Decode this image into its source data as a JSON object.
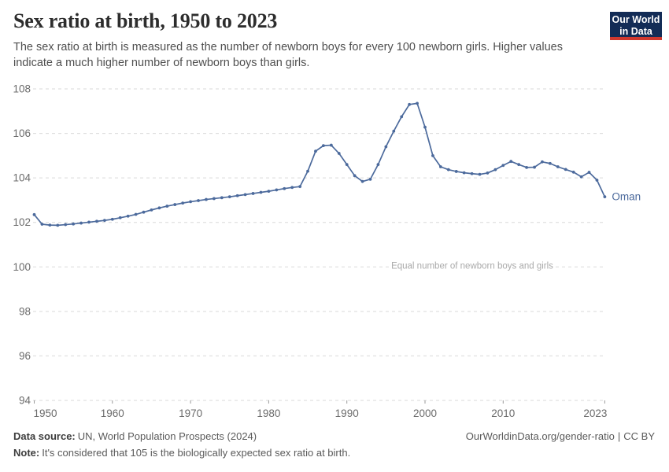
{
  "header": {
    "title": "Sex ratio at birth, 1950 to 2023",
    "subtitle": "The sex ratio at birth is measured as the number of newborn boys for every 100 newborn girls. Higher values indicate a much higher number of newborn boys than girls.",
    "logo": {
      "line1": "Our World",
      "line2": "in Data"
    }
  },
  "chart_data": {
    "type": "line",
    "title": "Sex ratio at birth, 1950 to 2023",
    "xlabel": "",
    "ylabel": "",
    "ylim": [
      94,
      108
    ],
    "yticks": [
      94,
      96,
      98,
      100,
      102,
      104,
      106,
      108
    ],
    "xticks": [
      1950,
      1960,
      1970,
      1980,
      1990,
      2000,
      2010,
      2023
    ],
    "grid": true,
    "legend_position": "end-of-line-label",
    "reference_line": {
      "value": 100,
      "label": "Equal number of newborn boys and girls"
    },
    "x": [
      1950,
      1951,
      1952,
      1953,
      1954,
      1955,
      1956,
      1957,
      1958,
      1959,
      1960,
      1961,
      1962,
      1963,
      1964,
      1965,
      1966,
      1967,
      1968,
      1969,
      1970,
      1971,
      1972,
      1973,
      1974,
      1975,
      1976,
      1977,
      1978,
      1979,
      1980,
      1981,
      1982,
      1983,
      1984,
      1985,
      1986,
      1987,
      1988,
      1989,
      1990,
      1991,
      1992,
      1993,
      1994,
      1995,
      1996,
      1997,
      1998,
      1999,
      2000,
      2001,
      2002,
      2003,
      2004,
      2005,
      2006,
      2007,
      2008,
      2009,
      2010,
      2011,
      2012,
      2013,
      2014,
      2015,
      2016,
      2017,
      2018,
      2019,
      2020,
      2021,
      2022,
      2023
    ],
    "series": [
      {
        "name": "Oman",
        "color": "#4c6a9c",
        "values": [
          102.35,
          101.92,
          101.88,
          101.87,
          101.9,
          101.93,
          101.97,
          102.01,
          102.05,
          102.09,
          102.14,
          102.21,
          102.28,
          102.36,
          102.46,
          102.56,
          102.65,
          102.73,
          102.8,
          102.87,
          102.93,
          102.98,
          103.03,
          103.07,
          103.11,
          103.15,
          103.2,
          103.25,
          103.3,
          103.35,
          103.4,
          103.46,
          103.52,
          103.57,
          103.61,
          104.3,
          105.2,
          105.45,
          105.47,
          105.1,
          104.6,
          104.1,
          103.84,
          103.94,
          104.6,
          105.4,
          106.1,
          106.75,
          107.3,
          107.35,
          106.28,
          105.0,
          104.5,
          104.37,
          104.29,
          104.23,
          104.19,
          104.16,
          104.22,
          104.37,
          104.56,
          104.74,
          104.6,
          104.47,
          104.48,
          104.72,
          104.65,
          104.5,
          104.38,
          104.26,
          104.05,
          104.25,
          103.9,
          103.15
        ]
      }
    ]
  },
  "footer": {
    "source_label": "Data source:",
    "source_text": "UN, World Population Prospects (2024)",
    "link_text": "OurWorldinData.org/gender-ratio",
    "separator": "|",
    "license_text": "CC BY",
    "note_label": "Note:",
    "note_text": "It's considered that 105 is the biologically expected sex ratio at birth."
  },
  "colors": {
    "line": "#4c6a9c",
    "grid": "#d9d9d9",
    "axis_text": "#6b6b6b",
    "tick_mark": "#9a9a9a",
    "annotation": "#a9a9a9",
    "logo_bg": "#132c56",
    "logo_stripe": "#d0392f"
  }
}
